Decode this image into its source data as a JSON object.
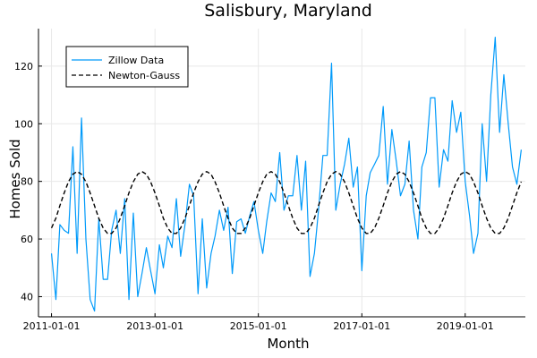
{
  "chart_data": {
    "type": "line",
    "title": "Salisbury, Maryland",
    "xlabel": "Month",
    "ylabel": "Homes Sold",
    "x_start": "2011-01-01",
    "x_range": [
      "2010-10-01",
      "2020-03-01"
    ],
    "ylim": [
      33,
      133
    ],
    "x_ticks": [
      "2011-01-01",
      "2013-01-01",
      "2015-01-01",
      "2017-01-01",
      "2019-01-01"
    ],
    "y_ticks": [
      40,
      60,
      80,
      100,
      120
    ],
    "grid": true,
    "legend_position": "top-left",
    "series": [
      {
        "name": "Zillow Data",
        "color": "#009AFA",
        "style": "solid",
        "values": [
          55,
          39,
          65,
          63,
          62,
          92,
          55,
          102,
          60,
          39,
          35,
          67,
          46,
          46,
          63,
          70,
          55,
          74,
          39,
          69,
          40,
          48,
          57,
          49,
          41,
          58,
          50,
          61,
          57,
          74,
          54,
          65,
          79,
          75,
          41,
          67,
          43,
          55,
          61,
          70,
          63,
          71,
          48,
          66,
          67,
          62,
          68,
          73,
          63,
          55,
          66,
          76,
          73,
          90,
          70,
          75,
          75,
          89,
          70,
          87,
          47,
          55,
          70,
          89,
          89,
          121,
          70,
          79,
          86,
          95,
          78,
          85,
          49,
          75,
          83,
          86,
          89,
          106,
          79,
          98,
          87,
          75,
          79,
          94,
          70,
          60,
          85,
          90,
          109,
          109,
          78,
          91,
          87,
          108,
          97,
          104,
          80,
          68,
          55,
          62,
          100,
          80,
          110,
          130,
          97,
          117,
          100,
          85,
          79,
          91
        ]
      },
      {
        "name": "Newton-Gauss",
        "color": "#000000",
        "style": "dashed",
        "values": [
          63.83,
          67.24,
          71.57,
          76.04,
          79.88,
          82.49,
          83.41,
          82.47,
          79.84,
          75.99,
          71.51,
          67.19,
          63.8,
          61.93,
          61.94,
          63.83,
          67.24,
          71.57,
          76.04,
          79.88,
          82.49,
          83.41,
          82.47,
          79.84,
          75.99,
          71.51,
          67.19,
          63.8,
          61.93,
          61.94,
          63.83,
          67.24,
          71.57,
          76.04,
          79.88,
          82.49,
          83.41,
          82.47,
          79.84,
          75.99,
          71.51,
          67.19,
          63.8,
          61.93,
          61.94,
          63.83,
          67.24,
          71.57,
          76.04,
          79.88,
          82.49,
          83.41,
          82.47,
          79.84,
          75.99,
          71.51,
          67.19,
          63.8,
          61.93,
          61.94,
          63.83,
          67.24,
          71.57,
          76.04,
          79.88,
          82.49,
          83.41,
          82.47,
          79.84,
          75.99,
          71.51,
          67.19,
          63.8,
          61.93,
          61.94,
          63.83,
          67.24,
          71.57,
          76.04,
          79.88,
          82.49,
          83.41,
          82.47,
          79.84,
          75.99,
          71.51,
          67.19,
          63.8,
          61.93,
          61.94,
          63.83,
          67.24,
          71.57,
          76.04,
          79.88,
          82.49,
          83.41,
          82.47,
          79.84,
          75.99,
          71.51,
          67.19,
          63.8,
          61.93,
          61.94,
          63.83,
          67.24,
          71.57,
          76.04,
          79.88
        ]
      }
    ]
  }
}
